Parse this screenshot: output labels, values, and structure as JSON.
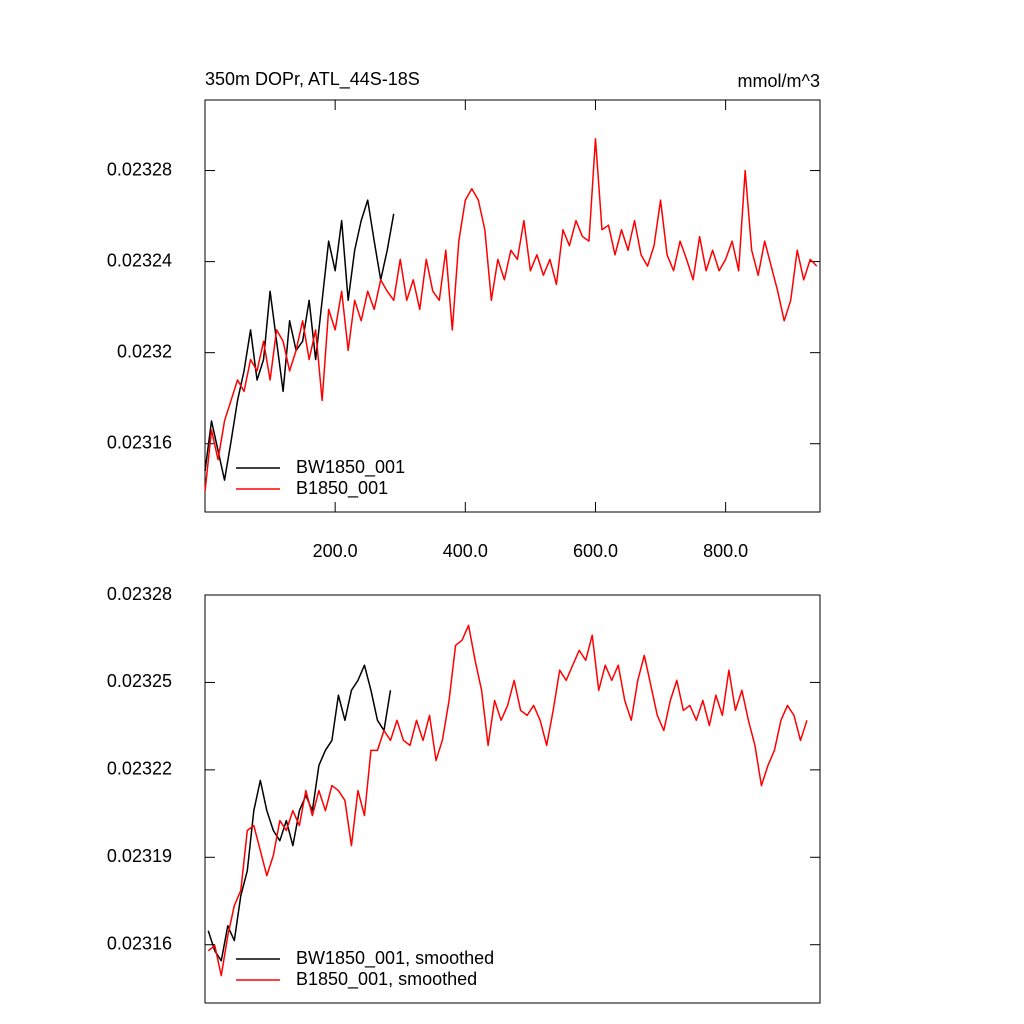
{
  "chart_data": [
    {
      "type": "line",
      "title": "350m DOPr, ATL_44S-18S",
      "units_label": "mmol/m^3",
      "xlim": [
        0,
        945
      ],
      "ylim": [
        0.02313,
        0.023311
      ],
      "xticks": [
        {
          "value": 200,
          "label": "200.0"
        },
        {
          "value": 400,
          "label": "400.0"
        },
        {
          "value": 600,
          "label": "600.0"
        },
        {
          "value": 800,
          "label": "800.0"
        }
      ],
      "yticks": [
        0.02316,
        0.0232,
        0.02324,
        0.02328
      ],
      "legend": "lower-left",
      "series": [
        {
          "name": "BW1850_001",
          "color": "#000000",
          "x": [
            0,
            10,
            20,
            30,
            40,
            50,
            60,
            70,
            80,
            90,
            100,
            110,
            120,
            130,
            140,
            150,
            160,
            170,
            180,
            190,
            200,
            210,
            220,
            230,
            240,
            250,
            260,
            270,
            280,
            290
          ],
          "values": [
            0.023148,
            0.02317,
            0.023157,
            0.023144,
            0.023161,
            0.023179,
            0.023192,
            0.02321,
            0.023188,
            0.023197,
            0.023227,
            0.023205,
            0.023183,
            0.023214,
            0.023201,
            0.023205,
            0.023223,
            0.023197,
            0.023223,
            0.023249,
            0.023236,
            0.023258,
            0.023223,
            0.023245,
            0.023258,
            0.023267,
            0.023249,
            0.023232,
            0.023245,
            0.023261
          ]
        },
        {
          "name": "B1850_001",
          "color": "#ff0000",
          "x": [
            0,
            10,
            20,
            30,
            40,
            50,
            60,
            70,
            80,
            90,
            100,
            110,
            120,
            130,
            140,
            150,
            160,
            170,
            180,
            190,
            200,
            210,
            220,
            230,
            240,
            250,
            260,
            270,
            280,
            290,
            300,
            310,
            320,
            330,
            340,
            350,
            360,
            370,
            380,
            390,
            400,
            410,
            420,
            430,
            440,
            450,
            460,
            470,
            480,
            490,
            500,
            510,
            520,
            530,
            540,
            550,
            560,
            570,
            580,
            590,
            600,
            610,
            620,
            630,
            640,
            650,
            660,
            670,
            680,
            690,
            700,
            710,
            720,
            730,
            740,
            750,
            760,
            770,
            780,
            790,
            800,
            810,
            820,
            830,
            840,
            850,
            860,
            870,
            880,
            890,
            900,
            910,
            920,
            930,
            940
          ],
          "values": [
            0.023139,
            0.023166,
            0.023153,
            0.02317,
            0.023179,
            0.023188,
            0.023183,
            0.023197,
            0.023192,
            0.023205,
            0.023188,
            0.02321,
            0.023205,
            0.023192,
            0.023201,
            0.023214,
            0.023197,
            0.02321,
            0.023179,
            0.023219,
            0.02321,
            0.023227,
            0.023201,
            0.023223,
            0.023214,
            0.023227,
            0.023219,
            0.023232,
            0.023227,
            0.023223,
            0.023241,
            0.023223,
            0.023232,
            0.023219,
            0.023241,
            0.023227,
            0.023223,
            0.023245,
            0.02321,
            0.023249,
            0.023267,
            0.023272,
            0.023267,
            0.023254,
            0.023223,
            0.023241,
            0.023232,
            0.023245,
            0.023241,
            0.023258,
            0.023236,
            0.023243,
            0.023234,
            0.023241,
            0.02323,
            0.023254,
            0.023247,
            0.023258,
            0.023251,
            0.023249,
            0.023294,
            0.023254,
            0.023256,
            0.023243,
            0.023254,
            0.023245,
            0.023258,
            0.023243,
            0.023238,
            0.023247,
            0.023267,
            0.023243,
            0.023236,
            0.023249,
            0.023241,
            0.023232,
            0.023251,
            0.023236,
            0.023245,
            0.023236,
            0.023241,
            0.023249,
            0.023236,
            0.02328,
            0.023245,
            0.023234,
            0.023249,
            0.023238,
            0.023227,
            0.023214,
            0.023223,
            0.023245,
            0.023232,
            0.023241,
            0.023238
          ]
        }
      ]
    },
    {
      "type": "line",
      "xlim": [
        0,
        945
      ],
      "ylim": [
        0.02314,
        0.02328
      ],
      "yticks": [
        0.02316,
        0.02319,
        0.02322,
        0.02325,
        0.02328
      ],
      "legend": "lower-left",
      "series": [
        {
          "name": "BW1850_001, smoothed",
          "color": "#000000",
          "x": [
            5,
            15,
            25,
            35,
            45,
            55,
            65,
            75,
            85,
            95,
            105,
            115,
            125,
            135,
            145,
            155,
            165,
            175,
            185,
            195,
            205,
            215,
            225,
            235,
            245,
            255,
            265,
            275,
            285
          ],
          "values": [
            0.0231648,
            0.0231579,
            0.0231545,
            0.0231665,
            0.0231614,
            0.0231768,
            0.0231854,
            0.023206,
            0.0232164,
            0.023206,
            0.0231992,
            0.0231957,
            0.0232026,
            0.023194,
            0.023206,
            0.0232112,
            0.023206,
            0.0232215,
            0.0232267,
            0.0232301,
            0.0232456,
            0.023237,
            0.0232473,
            0.0232507,
            0.0232559,
            0.0232473,
            0.023237,
            0.0232335,
            0.0232473
          ]
        },
        {
          "name": "B1850_001, smoothed",
          "color": "#ff0000",
          "x": [
            5,
            15,
            25,
            35,
            45,
            55,
            65,
            75,
            85,
            95,
            105,
            115,
            125,
            135,
            145,
            155,
            165,
            175,
            185,
            195,
            205,
            215,
            225,
            235,
            245,
            255,
            265,
            275,
            285,
            295,
            305,
            315,
            325,
            335,
            345,
            355,
            365,
            375,
            385,
            395,
            405,
            415,
            425,
            435,
            445,
            455,
            465,
            475,
            485,
            495,
            505,
            515,
            525,
            535,
            545,
            555,
            565,
            575,
            585,
            595,
            605,
            615,
            625,
            635,
            645,
            655,
            665,
            675,
            685,
            695,
            705,
            715,
            725,
            735,
            745,
            755,
            765,
            775,
            785,
            795,
            805,
            815,
            825,
            835,
            845,
            855,
            865,
            875,
            885,
            895,
            905,
            915,
            925
          ],
          "values": [
            0.0231579,
            0.0231597,
            0.0231494,
            0.0231631,
            0.0231734,
            0.0231786,
            0.0231992,
            0.0232009,
            0.0231923,
            0.0231837,
            0.0231906,
            0.0232026,
            0.0231992,
            0.023206,
            0.0232009,
            0.0232129,
            0.0232043,
            0.0232129,
            0.023206,
            0.0232146,
            0.0232129,
            0.0232095,
            0.023194,
            0.0232129,
            0.0232043,
            0.0232267,
            0.0232267,
            0.0232335,
            0.0232301,
            0.023237,
            0.0232301,
            0.0232284,
            0.023237,
            0.0232301,
            0.0232387,
            0.0232232,
            0.0232304,
            0.0232438,
            0.0232627,
            0.0232645,
            0.0232696,
            0.0232576,
            0.0232473,
            0.0232284,
            0.0232438,
            0.023237,
            0.0232421,
            0.0232507,
            0.0232404,
            0.0232387,
            0.0232421,
            0.023237,
            0.0232284,
            0.0232404,
            0.0232542,
            0.0232507,
            0.0232559,
            0.023261,
            0.0232576,
            0.0232662,
            0.0232473,
            0.0232559,
            0.0232507,
            0.0232559,
            0.0232438,
            0.023237,
            0.0232507,
            0.0232593,
            0.023249,
            0.0232387,
            0.0232335,
            0.0232438,
            0.0232507,
            0.0232404,
            0.0232421,
            0.023237,
            0.0232438,
            0.0232352,
            0.0232456,
            0.0232387,
            0.0232542,
            0.0232404,
            0.0232473,
            0.023237,
            0.0232284,
            0.0232146,
            0.0232215,
            0.0232267,
            0.023237,
            0.0232421,
            0.0232387,
            0.0232301,
            0.023237
          ]
        }
      ]
    }
  ]
}
